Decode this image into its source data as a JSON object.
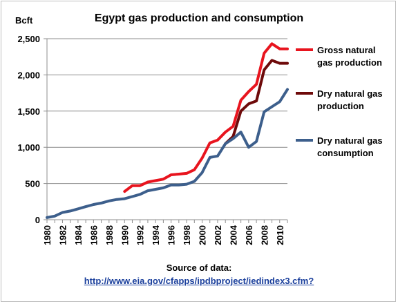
{
  "chart_data": {
    "type": "line",
    "title": "Egypt gas production and consumption",
    "ylabel": "Bcft",
    "xlabel": "",
    "ylim": [
      0,
      2500
    ],
    "yticks": [
      0,
      500,
      1000,
      1500,
      2000,
      2500
    ],
    "ytick_labels": [
      "0",
      "500",
      "1,000",
      "1,500",
      "2,000",
      "2,500"
    ],
    "xlim": [
      1980,
      2011
    ],
    "xticks": [
      1980,
      1982,
      1984,
      1986,
      1988,
      1990,
      1992,
      1994,
      1996,
      1998,
      2000,
      2002,
      2004,
      2006,
      2008,
      2010
    ],
    "grid": "horizontal",
    "legend_position": "right",
    "series": [
      {
        "name": "Gross natural gas production",
        "color": "#e8141e",
        "x": [
          1990,
          1991,
          1992,
          1993,
          1994,
          1995,
          1996,
          1997,
          1998,
          1999,
          2000,
          2001,
          2002,
          2003,
          2004,
          2005,
          2006,
          2007,
          2008,
          2009,
          2010,
          2011
        ],
        "values": [
          390,
          470,
          470,
          520,
          540,
          560,
          620,
          630,
          640,
          690,
          850,
          1060,
          1100,
          1210,
          1290,
          1650,
          1770,
          1870,
          2300,
          2430,
          2360,
          2360
        ]
      },
      {
        "name": "Dry natural gas production",
        "color": "#6e0a0a",
        "x": [
          2003,
          2004,
          2005,
          2006,
          2007,
          2008,
          2009,
          2010,
          2011
        ],
        "values": [
          1050,
          1150,
          1500,
          1600,
          1640,
          2070,
          2200,
          2160,
          2160
        ]
      },
      {
        "name": "Dry natural gas consumption",
        "color": "#3d5f8c",
        "x": [
          1980,
          1981,
          1982,
          1983,
          1984,
          1985,
          1986,
          1987,
          1988,
          1989,
          1990,
          1991,
          1992,
          1993,
          1994,
          1995,
          1996,
          1997,
          1998,
          1999,
          2000,
          2001,
          2002,
          2003,
          2004,
          2005,
          2006,
          2007,
          2008,
          2009,
          2010,
          2011
        ],
        "values": [
          30,
          50,
          100,
          120,
          150,
          180,
          210,
          230,
          260,
          280,
          290,
          320,
          350,
          400,
          420,
          440,
          480,
          480,
          490,
          530,
          650,
          860,
          880,
          1050,
          1120,
          1210,
          1000,
          1080,
          1490,
          1560,
          1630,
          1800
        ]
      }
    ]
  },
  "source": {
    "label": "Source of data:",
    "link": "http://www.eia.gov/cfapps/ipdbproject/iedindex3.cfm?"
  }
}
